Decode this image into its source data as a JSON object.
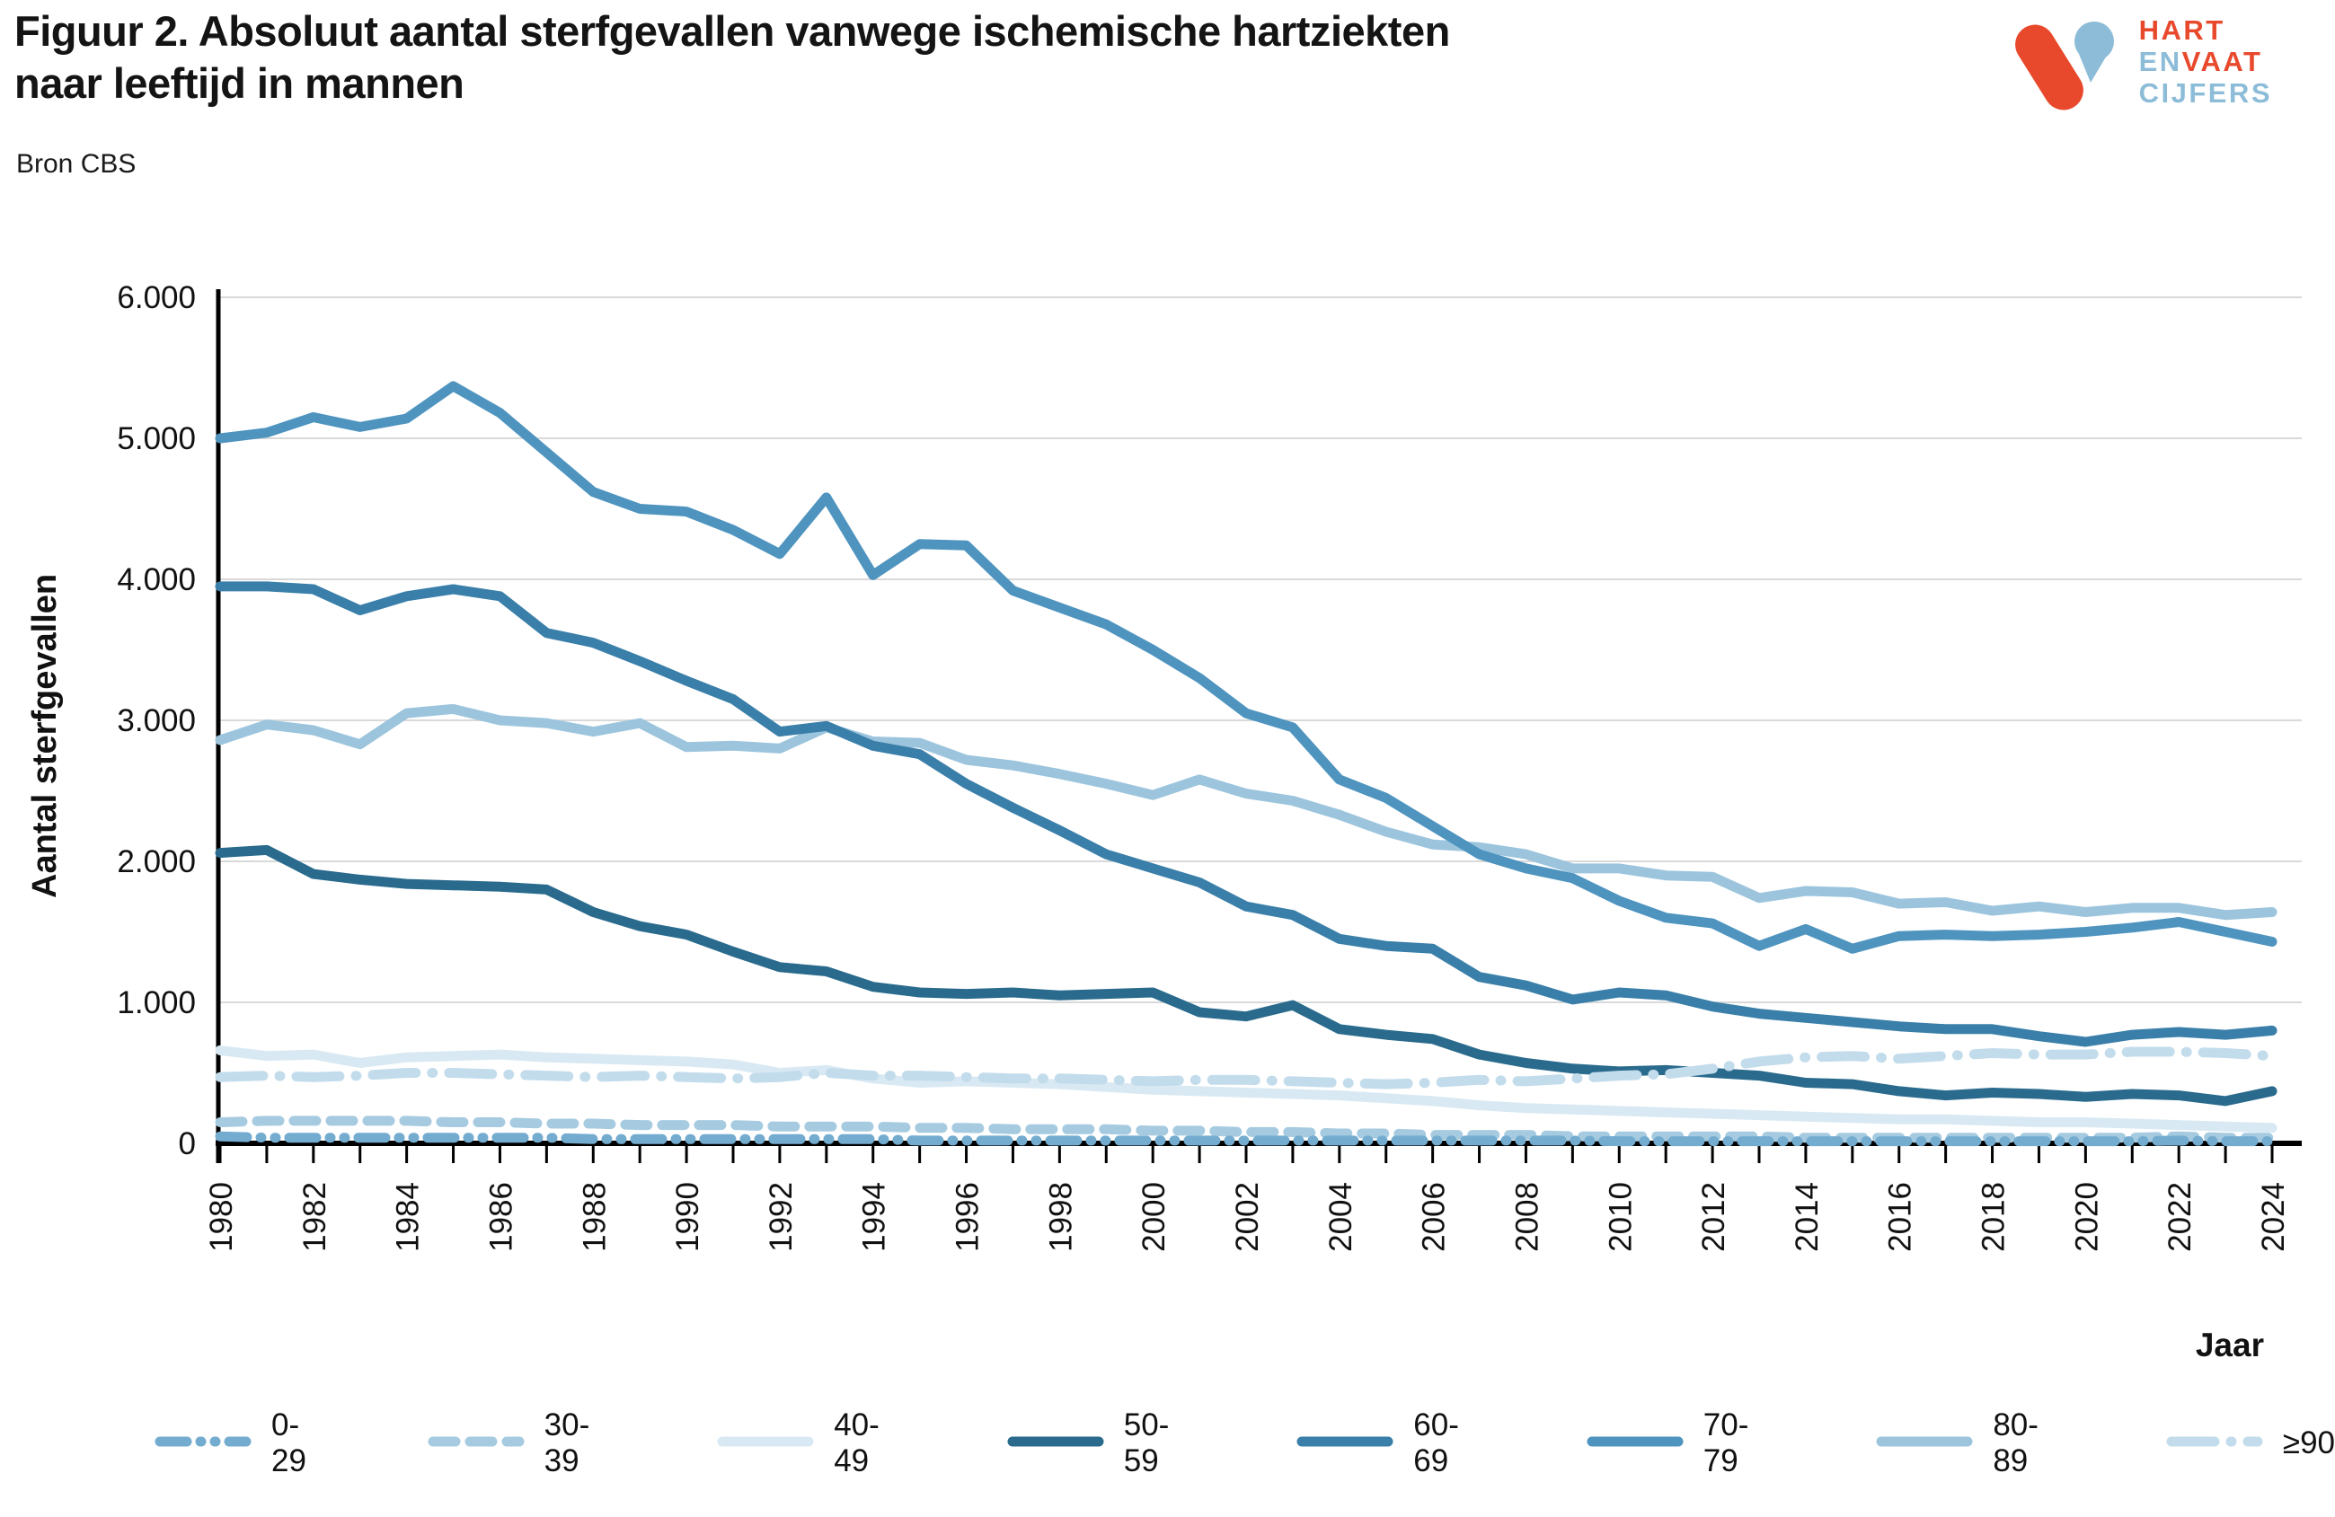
{
  "header": {
    "title_line1": "Figuur 2. Absoluut aantal sterfgevallen vanwege ischemische hartziekten",
    "title_line2": "naar leeftijd in mannen",
    "source": "Bron CBS"
  },
  "logo": {
    "word1": "HART",
    "word2a": "EN",
    "word2b": "VAAT",
    "word3": "CIJFERS",
    "red": "#e8492c",
    "blue": "#8cbcd8"
  },
  "chart_data": {
    "type": "line",
    "title": "Absoluut aantal sterfgevallen vanwege ischemische hartziekten naar leeftijd in mannen",
    "xlabel": "Jaar",
    "ylabel": "Aantal sterfgevallen",
    "ylim": [
      0,
      6000
    ],
    "grid": "horizontal",
    "legend_position": "bottom",
    "y_tick_labels": [
      "0",
      "1.000",
      "2.000",
      "3.000",
      "4.000",
      "5.000",
      "6.000"
    ],
    "x_tick_labels": [
      "1980",
      "1982",
      "1984",
      "1986",
      "1988",
      "1990",
      "1992",
      "1994",
      "1996",
      "1998",
      "2000",
      "2002",
      "2004",
      "2006",
      "2008",
      "2010",
      "2012",
      "2014",
      "2016",
      "2018",
      "2020",
      "2022",
      "2024"
    ],
    "x": [
      1980,
      1981,
      1982,
      1983,
      1984,
      1985,
      1986,
      1987,
      1988,
      1989,
      1990,
      1991,
      1992,
      1993,
      1994,
      1995,
      1996,
      1997,
      1998,
      1999,
      2000,
      2001,
      2002,
      2003,
      2004,
      2005,
      2006,
      2007,
      2008,
      2009,
      2010,
      2011,
      2012,
      2013,
      2014,
      2015,
      2016,
      2017,
      2018,
      2019,
      2020,
      2021,
      2022,
      2023,
      2024
    ],
    "series": [
      {
        "name": "0-29",
        "color": "#74acd0",
        "dash": "dash-dot-dot",
        "values": [
          50,
          40,
          40,
          40,
          40,
          40,
          40,
          40,
          30,
          30,
          30,
          30,
          30,
          30,
          30,
          20,
          20,
          20,
          20,
          20,
          20,
          20,
          20,
          20,
          20,
          20,
          20,
          20,
          20,
          20,
          15,
          15,
          15,
          15,
          15,
          15,
          15,
          15,
          15,
          15,
          15,
          15,
          20,
          15,
          15
        ]
      },
      {
        "name": "30-39",
        "color": "#a6cbe0",
        "dash": "dash",
        "values": [
          150,
          160,
          160,
          160,
          160,
          150,
          150,
          140,
          140,
          130,
          130,
          130,
          120,
          120,
          120,
          110,
          110,
          100,
          100,
          100,
          90,
          90,
          80,
          80,
          70,
          70,
          60,
          60,
          60,
          50,
          50,
          50,
          50,
          50,
          40,
          40,
          40,
          40,
          40,
          40,
          40,
          40,
          50,
          40,
          40
        ]
      },
      {
        "name": "40-49",
        "color": "#d9e9f3",
        "dash": "solid",
        "values": [
          660,
          620,
          630,
          570,
          610,
          620,
          630,
          610,
          600,
          590,
          580,
          560,
          500,
          520,
          460,
          430,
          440,
          430,
          420,
          400,
          380,
          370,
          360,
          350,
          340,
          320,
          300,
          270,
          250,
          240,
          230,
          220,
          210,
          200,
          190,
          180,
          170,
          170,
          160,
          150,
          150,
          140,
          130,
          120,
          110
        ]
      },
      {
        "name": "50-59",
        "color": "#2a6b8d",
        "dash": "solid",
        "values": [
          2060,
          2080,
          1910,
          1870,
          1840,
          1830,
          1820,
          1800,
          1640,
          1540,
          1480,
          1360,
          1250,
          1220,
          1110,
          1070,
          1060,
          1070,
          1050,
          1060,
          1070,
          930,
          900,
          980,
          810,
          770,
          740,
          630,
          570,
          530,
          510,
          520,
          500,
          480,
          430,
          420,
          370,
          340,
          360,
          350,
          330,
          350,
          340,
          300,
          370
        ]
      },
      {
        "name": "60-69",
        "color": "#3a7fa9",
        "dash": "solid",
        "values": [
          3950,
          3950,
          3930,
          3780,
          3880,
          3930,
          3880,
          3620,
          3550,
          3420,
          3280,
          3150,
          2920,
          2960,
          2820,
          2760,
          2550,
          2380,
          2220,
          2050,
          1950,
          1850,
          1680,
          1620,
          1450,
          1400,
          1380,
          1180,
          1120,
          1020,
          1070,
          1050,
          970,
          920,
          890,
          860,
          830,
          810,
          810,
          760,
          720,
          770,
          790,
          770,
          800
        ]
      },
      {
        "name": "70-79",
        "color": "#4e94bf",
        "dash": "solid",
        "values": [
          5000,
          5040,
          5150,
          5080,
          5140,
          5370,
          5180,
          4900,
          4620,
          4500,
          4480,
          4350,
          4180,
          4580,
          4030,
          4250,
          4240,
          3920,
          3800,
          3680,
          3500,
          3300,
          3050,
          2950,
          2580,
          2450,
          2250,
          2050,
          1950,
          1880,
          1720,
          1600,
          1560,
          1400,
          1520,
          1380,
          1470,
          1480,
          1470,
          1480,
          1500,
          1530,
          1570,
          1500,
          1430
        ]
      },
      {
        "name": "80-89",
        "color": "#9cc5dd",
        "dash": "solid",
        "values": [
          2860,
          2970,
          2930,
          2830,
          3050,
          3080,
          3000,
          2980,
          2920,
          2980,
          2810,
          2820,
          2800,
          2950,
          2850,
          2840,
          2720,
          2680,
          2620,
          2550,
          2470,
          2580,
          2480,
          2430,
          2330,
          2210,
          2120,
          2100,
          2050,
          1950,
          1950,
          1900,
          1890,
          1740,
          1790,
          1780,
          1700,
          1710,
          1650,
          1680,
          1640,
          1670,
          1670,
          1620,
          1640
        ]
      },
      {
        "name": "≥90",
        "color": "#c3dcec",
        "dash": "long-dash-dot",
        "values": [
          470,
          480,
          470,
          480,
          500,
          500,
          490,
          480,
          470,
          480,
          470,
          460,
          470,
          500,
          480,
          480,
          470,
          460,
          460,
          450,
          440,
          450,
          450,
          440,
          430,
          420,
          430,
          450,
          440,
          460,
          480,
          490,
          530,
          580,
          610,
          620,
          600,
          620,
          640,
          630,
          630,
          650,
          650,
          640,
          620
        ]
      }
    ]
  }
}
